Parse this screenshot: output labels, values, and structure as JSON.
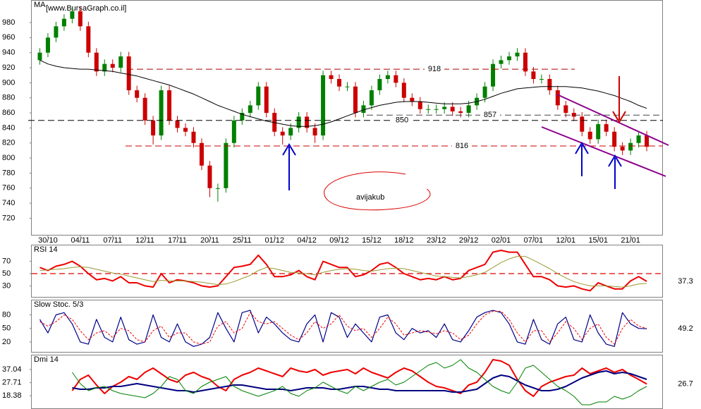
{
  "header": {
    "watermark": "[www.BursaGraph.co.il]"
  },
  "annotation": "avijakub",
  "chart_data": [
    {
      "type": "candlestick",
      "title": "MA",
      "ylim": [
        698,
        1009
      ],
      "yticks": [
        720,
        740,
        760,
        780,
        800,
        820,
        840,
        860,
        880,
        900,
        920,
        940,
        960,
        980
      ],
      "xlim": [
        -1,
        77
      ],
      "xticks": [
        {
          "value": 1,
          "label": "30/10"
        },
        {
          "value": 5,
          "label": "04/11"
        },
        {
          "value": 9,
          "label": "07/11"
        },
        {
          "value": 13,
          "label": "12/11"
        },
        {
          "value": 17,
          "label": "17/11"
        },
        {
          "value": 21,
          "label": "20/11"
        },
        {
          "value": 25,
          "label": "25/11"
        },
        {
          "value": 29,
          "label": "01/12"
        },
        {
          "value": 33,
          "label": "04/12"
        },
        {
          "value": 37,
          "label": "09/12"
        },
        {
          "value": 41,
          "label": "15/12"
        },
        {
          "value": 45,
          "label": "18/12"
        },
        {
          "value": 49,
          "label": "23/12"
        },
        {
          "value": 53,
          "label": "29/12"
        },
        {
          "value": 57,
          "label": "02/01"
        },
        {
          "value": 61,
          "label": "07/01"
        },
        {
          "value": 65,
          "label": "12/01"
        },
        {
          "value": 69,
          "label": "15/01"
        },
        {
          "value": 73,
          "label": "21/01"
        }
      ],
      "up_color": "#008000",
      "down_color": "#cc0000",
      "ohlc": [
        [
          930,
          946,
          924,
          940
        ],
        [
          940,
          966,
          934,
          960
        ],
        [
          960,
          981,
          954,
          975
        ],
        [
          975,
          991,
          969,
          985
        ],
        [
          985,
          1001,
          979,
          995
        ],
        [
          995,
          1001,
          969,
          975
        ],
        [
          975,
          981,
          934,
          940
        ],
        [
          940,
          946,
          909,
          915
        ],
        [
          915,
          931,
          909,
          925
        ],
        [
          925,
          931,
          914,
          920
        ],
        [
          920,
          941,
          914,
          935
        ],
        [
          935,
          941,
          884,
          890
        ],
        [
          890,
          896,
          874,
          880
        ],
        [
          880,
          886,
          844,
          850
        ],
        [
          850,
          856,
          818,
          830
        ],
        [
          830,
          896,
          824,
          890
        ],
        [
          890,
          896,
          844,
          850
        ],
        [
          850,
          856,
          834,
          840
        ],
        [
          840,
          846,
          829,
          835
        ],
        [
          835,
          841,
          814,
          820
        ],
        [
          820,
          826,
          784,
          790
        ],
        [
          790,
          796,
          748,
          760
        ],
        [
          760,
          766,
          742,
          760
        ],
        [
          760,
          826,
          754,
          820
        ],
        [
          820,
          856,
          814,
          850
        ],
        [
          850,
          866,
          844,
          860
        ],
        [
          860,
          876,
          854,
          870
        ],
        [
          870,
          901,
          864,
          895
        ],
        [
          895,
          901,
          854,
          860
        ],
        [
          860,
          866,
          829,
          835
        ],
        [
          835,
          841,
          818,
          830
        ],
        [
          830,
          846,
          824,
          840
        ],
        [
          840,
          861,
          834,
          855
        ],
        [
          855,
          861,
          834,
          840
        ],
        [
          840,
          846,
          820,
          830
        ],
        [
          830,
          916,
          824,
          910
        ],
        [
          910,
          916,
          899,
          905
        ],
        [
          905,
          911,
          889,
          895
        ],
        [
          895,
          901,
          889,
          895
        ],
        [
          895,
          901,
          854,
          860
        ],
        [
          860,
          876,
          854,
          870
        ],
        [
          870,
          896,
          864,
          890
        ],
        [
          890,
          911,
          884,
          905
        ],
        [
          905,
          916,
          899,
          910
        ],
        [
          910,
          916,
          894,
          900
        ],
        [
          900,
          906,
          874,
          880
        ],
        [
          880,
          886,
          869,
          875
        ],
        [
          875,
          881,
          859,
          865
        ],
        [
          865,
          871,
          859,
          865
        ],
        [
          865,
          871,
          859,
          865
        ],
        [
          865,
          874,
          859,
          868
        ],
        [
          868,
          874,
          856,
          862
        ],
        [
          862,
          868,
          854,
          860
        ],
        [
          860,
          876,
          854,
          870
        ],
        [
          870,
          886,
          864,
          880
        ],
        [
          880,
          901,
          874,
          895
        ],
        [
          895,
          931,
          889,
          925
        ],
        [
          925,
          936,
          919,
          930
        ],
        [
          930,
          941,
          924,
          935
        ],
        [
          935,
          946,
          929,
          940
        ],
        [
          940,
          946,
          909,
          915
        ],
        [
          915,
          921,
          899,
          905
        ],
        [
          905,
          911,
          899,
          905
        ],
        [
          905,
          911,
          884,
          890
        ],
        [
          890,
          896,
          864,
          870
        ],
        [
          870,
          876,
          854,
          860
        ],
        [
          860,
          866,
          849,
          855
        ],
        [
          855,
          861,
          829,
          835
        ],
        [
          835,
          841,
          819,
          825
        ],
        [
          825,
          851,
          819,
          845
        ],
        [
          845,
          851,
          829,
          835
        ],
        [
          835,
          841,
          809,
          815
        ],
        [
          815,
          821,
          804,
          810
        ],
        [
          810,
          826,
          804,
          820
        ],
        [
          820,
          836,
          814,
          830
        ],
        [
          830,
          836,
          809,
          815
        ]
      ],
      "series": [
        {
          "color": "#000000",
          "values": [
            930,
            925,
            922,
            920,
            919,
            918,
            918,
            917,
            916,
            915,
            913,
            911,
            909,
            906,
            903,
            900,
            897,
            893,
            889,
            885,
            880,
            875,
            870,
            866,
            862,
            858,
            855,
            852,
            849,
            847,
            845,
            843,
            842,
            842,
            843,
            845,
            848,
            852,
            856,
            860,
            864,
            867,
            870,
            872,
            874,
            875,
            875,
            875,
            874,
            873,
            872,
            872,
            872,
            873,
            875,
            878,
            882,
            886,
            889,
            892,
            893,
            894,
            895,
            895,
            895,
            895,
            894,
            893,
            891,
            889,
            886,
            883,
            879,
            875,
            870,
            866
          ]
        }
      ],
      "levels": [
        {
          "value": 918,
          "color": "#aa0000"
        },
        {
          "value": 857,
          "color": "#444444"
        },
        {
          "value": 850,
          "color": "#000000"
        },
        {
          "value": 816,
          "color": "#cc0000"
        }
      ]
    },
    {
      "type": "line",
      "title": "RSI 14",
      "ylim": [
        12,
        96
      ],
      "yticks": [
        30,
        50,
        70
      ],
      "hline": 50,
      "hline_color": "#dd0000",
      "series": [
        {
          "color": "#ee0000",
          "width": 2,
          "values": [
            60,
            55,
            62,
            65,
            70,
            62,
            50,
            40,
            42,
            38,
            45,
            35,
            35,
            30,
            28,
            50,
            35,
            40,
            38,
            35,
            30,
            28,
            30,
            45,
            60,
            62,
            65,
            80,
            65,
            45,
            45,
            48,
            55,
            45,
            40,
            70,
            65,
            60,
            60,
            45,
            48,
            55,
            65,
            68,
            60,
            50,
            45,
            40,
            42,
            40,
            45,
            40,
            42,
            55,
            60,
            65,
            85,
            88,
            85,
            85,
            65,
            45,
            45,
            40,
            30,
            28,
            30,
            25,
            22,
            35,
            30,
            25,
            25,
            38,
            45,
            37.3
          ]
        },
        {
          "color": "#999933",
          "width": 1,
          "values": [
            55,
            56,
            57,
            58,
            60,
            61,
            60,
            57,
            54,
            51,
            49,
            46,
            43,
            40,
            37,
            39,
            38,
            38,
            38,
            37,
            36,
            34,
            32,
            33,
            37,
            42,
            47,
            55,
            60,
            58,
            55,
            52,
            51,
            50,
            48,
            52,
            55,
            57,
            58,
            57,
            55,
            54,
            56,
            58,
            59,
            58,
            55,
            52,
            49,
            46,
            45,
            44,
            43,
            45,
            48,
            52,
            60,
            68,
            74,
            78,
            78,
            72,
            65,
            58,
            50,
            43,
            37,
            33,
            30,
            30,
            30,
            29,
            28,
            30,
            33,
            34
          ]
        }
      ]
    },
    {
      "type": "line",
      "title": "Slow Stoc. 5/3",
      "ylim": [
        -2,
        112
      ],
      "yticks": [
        20,
        50,
        80
      ],
      "series": [
        {
          "color": "#000088",
          "width": 1.2,
          "values": [
            70,
            40,
            80,
            85,
            60,
            20,
            15,
            70,
            30,
            20,
            75,
            25,
            15,
            20,
            80,
            30,
            20,
            60,
            20,
            10,
            15,
            30,
            85,
            50,
            20,
            85,
            90,
            40,
            75,
            60,
            40,
            25,
            20,
            60,
            80,
            20,
            85,
            75,
            30,
            60,
            40,
            20,
            75,
            80,
            40,
            25,
            50,
            40,
            45,
            30,
            60,
            25,
            20,
            45,
            75,
            85,
            90,
            85,
            60,
            20,
            15,
            70,
            25,
            15,
            60,
            75,
            25,
            20,
            80,
            40,
            15,
            10,
            85,
            60,
            50,
            49.2
          ]
        },
        {
          "color": "#ee0000",
          "width": 1,
          "dash": true,
          "values": [
            65,
            55,
            65,
            80,
            70,
            45,
            25,
            40,
            45,
            30,
            50,
            45,
            25,
            20,
            45,
            55,
            30,
            40,
            40,
            20,
            15,
            20,
            55,
            65,
            40,
            50,
            85,
            65,
            60,
            65,
            50,
            35,
            25,
            40,
            65,
            50,
            60,
            80,
            55,
            45,
            50,
            30,
            50,
            75,
            60,
            35,
            40,
            45,
            42,
            38,
            45,
            40,
            25,
            35,
            60,
            80,
            88,
            88,
            70,
            40,
            20,
            45,
            45,
            20,
            40,
            65,
            50,
            25,
            50,
            60,
            30,
            15,
            50,
            70,
            55,
            50
          ]
        }
      ]
    },
    {
      "type": "line",
      "title": "Dmi 14",
      "ylim": [
        9,
        47
      ],
      "yticks": [
        18.38,
        27.71,
        37.04
      ],
      "series": [
        {
          "color": "#ee0000",
          "width": 2,
          "values": [
            null,
            null,
            null,
            null,
            22,
            30,
            33,
            26,
            20,
            25,
            28,
            32,
            30,
            35,
            38,
            34,
            30,
            28,
            33,
            35,
            32,
            30,
            25,
            22,
            30,
            33,
            35,
            38,
            36,
            34,
            32,
            38,
            36,
            35,
            37,
            33,
            35,
            36,
            37,
            34,
            38,
            35,
            33,
            31,
            35,
            38,
            36,
            32,
            28,
            25,
            24,
            22,
            20,
            26,
            28,
            35,
            44,
            43,
            40,
            30,
            22,
            18,
            25,
            28,
            30,
            32,
            33,
            38,
            34,
            36,
            38,
            35,
            37,
            33,
            30,
            26.7
          ]
        },
        {
          "color": "#000080",
          "width": 2,
          "values": [
            null,
            null,
            null,
            null,
            24,
            23,
            23,
            24,
            24,
            25,
            25,
            26,
            27,
            26,
            25,
            24,
            23,
            22,
            22,
            21,
            22,
            23,
            24,
            25,
            26,
            26,
            25,
            24,
            23,
            23,
            23,
            22,
            23,
            24,
            24,
            24,
            23,
            23,
            24,
            25,
            25,
            24,
            23,
            23,
            22,
            22,
            22,
            22,
            22,
            22,
            22,
            21,
            21,
            22,
            23,
            27,
            31,
            33,
            32,
            29,
            26,
            24,
            22,
            22,
            23,
            25,
            28,
            31,
            33,
            35,
            36,
            34,
            35,
            34,
            32,
            30
          ]
        },
        {
          "color": "#008000",
          "width": 1,
          "values": [
            null,
            null,
            null,
            null,
            35,
            27,
            22,
            24,
            25,
            22,
            20,
            19,
            18,
            17,
            20,
            25,
            32,
            30,
            22,
            20,
            25,
            28,
            30,
            32,
            25,
            22,
            20,
            18,
            20,
            22,
            25,
            20,
            18,
            22,
            24,
            28,
            25,
            22,
            20,
            25,
            22,
            25,
            28,
            30,
            26,
            28,
            32,
            36,
            40,
            42,
            38,
            40,
            44,
            38,
            35,
            30,
            25,
            22,
            20,
            28,
            38,
            40,
            35,
            30,
            25,
            22,
            18,
            12,
            12,
            14,
            14,
            18,
            16,
            18,
            22,
            25
          ]
        }
      ]
    }
  ]
}
